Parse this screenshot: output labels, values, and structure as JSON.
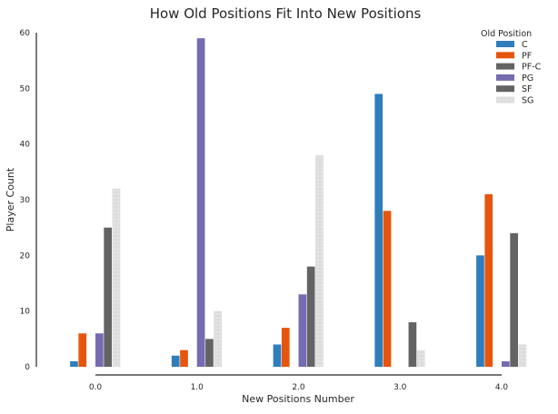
{
  "chart_data": {
    "type": "bar",
    "title": "How Old Positions Fit Into New Positions",
    "xlabel": "New Positions Number",
    "ylabel": "Player Count",
    "categories": [
      "0.0",
      "1.0",
      "2.0",
      "3.0",
      "4.0"
    ],
    "ylim": [
      0,
      60
    ],
    "yticks": [
      0,
      10,
      20,
      30,
      40,
      50,
      60
    ],
    "grid": false,
    "legend": {
      "title": "Old Position",
      "placement": "top-right"
    },
    "series": [
      {
        "name": "C",
        "color": "#2f7ebc",
        "pattern": "solid",
        "values": [
          1,
          2,
          4,
          49,
          20
        ]
      },
      {
        "name": "PF",
        "color": "#e6550d",
        "pattern": "solid",
        "values": [
          6,
          3,
          7,
          28,
          31
        ]
      },
      {
        "name": "PF-C",
        "color": "#636363",
        "pattern": "solid",
        "values": [
          0,
          0,
          0,
          0,
          0
        ]
      },
      {
        "name": "PG",
        "color": "#756bb1",
        "pattern": "solid",
        "values": [
          6,
          59,
          13,
          0,
          1
        ]
      },
      {
        "name": "SF",
        "color": "#636363",
        "pattern": "solid",
        "values": [
          25,
          5,
          18,
          8,
          24
        ]
      },
      {
        "name": "SG",
        "color": "#d9d9d9",
        "pattern": "dotted",
        "values": [
          32,
          10,
          38,
          3,
          4
        ]
      }
    ]
  }
}
